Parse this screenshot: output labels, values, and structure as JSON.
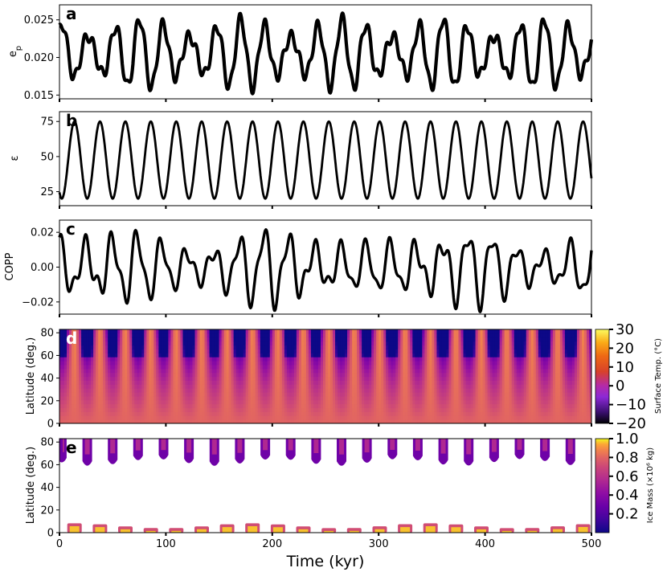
{
  "figure": {
    "x_label": "Time (kyr)",
    "x_ticks": [
      "0",
      "100",
      "200",
      "300",
      "400",
      "500"
    ]
  },
  "chart_data": [
    {
      "panel": "a",
      "type": "line",
      "ylabel": "e_p",
      "ylim": [
        0.0145,
        0.027
      ],
      "xlim": [
        0,
        500
      ],
      "yticks": [
        "0.015",
        "0.020",
        "0.025"
      ],
      "series_color": "#000000",
      "model": {
        "mean": 0.0205,
        "terms": [
          [
            0.0035,
            23.8,
            0.6
          ],
          [
            0.0012,
            19.0,
            1.7
          ],
          [
            0.0008,
            8.1,
            2.2
          ]
        ],
        "band": 0.0004
      }
    },
    {
      "panel": "b",
      "type": "line",
      "ylabel": "ε",
      "ylim": [
        15,
        82
      ],
      "xlim": [
        0,
        500
      ],
      "yticks": [
        "25",
        "50",
        "75"
      ],
      "series_color": "#000000",
      "model": {
        "mean": 47.5,
        "amplitude": 27.5,
        "period": 23.9,
        "phase": -2.15
      }
    },
    {
      "panel": "c",
      "type": "line",
      "ylabel": "COPP",
      "ylim": [
        -0.027,
        0.027
      ],
      "xlim": [
        0,
        500
      ],
      "yticks": [
        "0.02",
        "0.00",
        "−0.02"
      ],
      "series_color": "#000000",
      "model": {
        "terms": [
          [
            0.0135,
            23.9,
            1.3
          ],
          [
            0.0055,
            11.4,
            0.5
          ],
          [
            0.0035,
            19.5,
            2.7
          ]
        ],
        "envelope": [
          0.25,
          165
        ]
      }
    },
    {
      "panel": "d",
      "type": "heatmap",
      "ylabel": "Latitude (deg.)",
      "ylim": [
        0,
        83
      ],
      "xlim": [
        0,
        500
      ],
      "yticks": [
        "0",
        "20",
        "40",
        "60",
        "80"
      ],
      "colorbar_label": "Surface Temp. (°C)",
      "colorbar_ticks": [
        "30",
        "20",
        "10",
        "0",
        "−10",
        "−20"
      ],
      "colorbar_range": [
        -20,
        30
      ],
      "colormap": "plasma"
    },
    {
      "panel": "e",
      "type": "heatmap",
      "ylabel": "Latitude (deg.)",
      "ylim": [
        0,
        83
      ],
      "xlim": [
        0,
        500
      ],
      "yticks": [
        "0",
        "20",
        "40",
        "60",
        "80"
      ],
      "colorbar_label": "Ice Mass (×10⁶ kg)",
      "colorbar_ticks": [
        "1.0",
        "0.8",
        "0.6",
        "0.4",
        "0.2"
      ],
      "colorbar_range": [
        0,
        1.0
      ],
      "colormap": "plasma"
    }
  ]
}
